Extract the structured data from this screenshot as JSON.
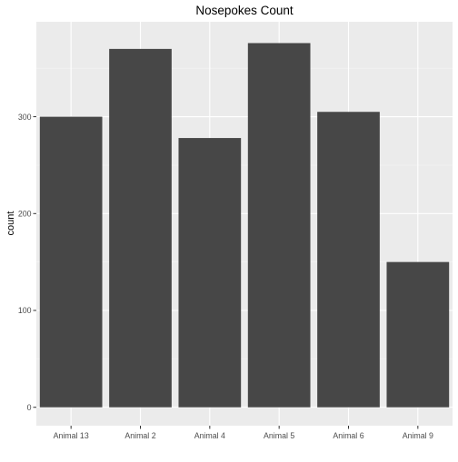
{
  "chart_data": {
    "type": "bar",
    "title": "Nosepokes Count",
    "xlabel": "",
    "ylabel": "count",
    "categories": [
      "Animal 13",
      "Animal 2",
      "Animal 4",
      "Animal 5",
      "Animal 6",
      "Animal 9"
    ],
    "values": [
      300,
      370,
      278,
      376,
      305,
      150
    ],
    "y_ticks": [
      0,
      100,
      200,
      300
    ],
    "ylim": [
      -19,
      398
    ],
    "grid": true,
    "legend": "none",
    "colors": {
      "bar": "#474747",
      "panel": "#ebebeb",
      "grid_major": "#ffffff",
      "text": "#000000",
      "tick_text": "#4d4d4d"
    }
  }
}
